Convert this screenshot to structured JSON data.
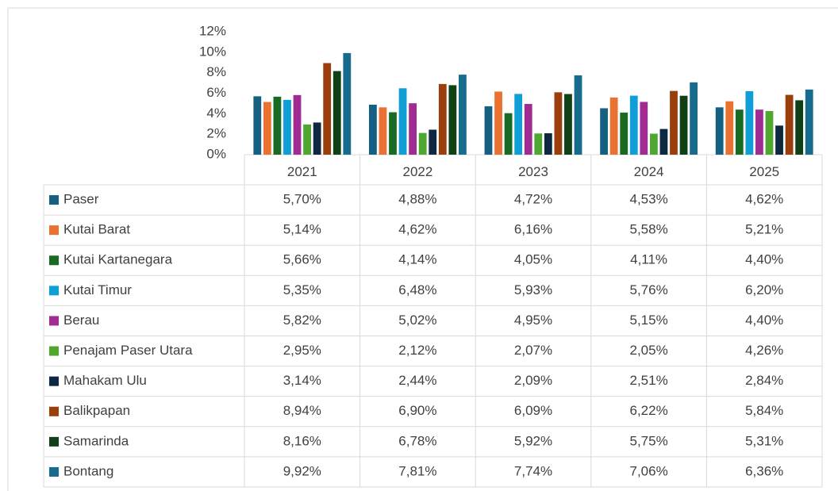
{
  "chart_data": {
    "type": "bar",
    "grid": false,
    "categories": [
      "2021",
      "2022",
      "2023",
      "2024",
      "2025"
    ],
    "ylim": [
      0,
      12
    ],
    "yticks": [
      {
        "value": 0,
        "label": "0%"
      },
      {
        "value": 2,
        "label": "2%"
      },
      {
        "value": 4,
        "label": "4%"
      },
      {
        "value": 6,
        "label": "6%"
      },
      {
        "value": 8,
        "label": "8%"
      },
      {
        "value": 10,
        "label": "10%"
      },
      {
        "value": 12,
        "label": "12%"
      }
    ],
    "series": [
      {
        "name": "Paser",
        "color": "#156082",
        "values": [
          5.7,
          4.88,
          4.72,
          4.53,
          4.62
        ],
        "value_labels": [
          "5,70%",
          "4,88%",
          "4,72%",
          "4,53%",
          "4,62%"
        ]
      },
      {
        "name": "Kutai Barat",
        "color": "#e97132",
        "values": [
          5.14,
          4.62,
          6.16,
          5.58,
          5.21
        ],
        "value_labels": [
          "5,14%",
          "4,62%",
          "6,16%",
          "5,58%",
          "5,21%"
        ]
      },
      {
        "name": "Kutai Kartanegara",
        "color": "#196b24",
        "values": [
          5.66,
          4.14,
          4.05,
          4.11,
          4.4
        ],
        "value_labels": [
          "5,66%",
          "4,14%",
          "4,05%",
          "4,11%",
          "4,40%"
        ]
      },
      {
        "name": "Kutai Timur",
        "color": "#0f9ed5",
        "values": [
          5.35,
          6.48,
          5.93,
          5.76,
          6.2
        ],
        "value_labels": [
          "5,35%",
          "6,48%",
          "5,93%",
          "5,76%",
          "6,20%"
        ]
      },
      {
        "name": "Berau",
        "color": "#a02b93",
        "values": [
          5.82,
          5.02,
          4.95,
          5.15,
          4.4
        ],
        "value_labels": [
          "5,82%",
          "5,02%",
          "4,95%",
          "5,15%",
          "4,40%"
        ]
      },
      {
        "name": "Penajam Paser Utara",
        "color": "#4ea72e",
        "values": [
          2.95,
          2.12,
          2.07,
          2.05,
          4.26
        ],
        "value_labels": [
          "2,95%",
          "2,12%",
          "2,07%",
          "2,05%",
          "4,26%"
        ]
      },
      {
        "name": "Mahakam Ulu",
        "color": "#0e2841",
        "values": [
          3.14,
          2.44,
          2.09,
          2.51,
          2.84
        ],
        "value_labels": [
          "3,14%",
          "2,44%",
          "2,09%",
          "2,51%",
          "2,84%"
        ]
      },
      {
        "name": "Balikpapan",
        "color": "#9a3f0c",
        "values": [
          8.94,
          6.9,
          6.09,
          6.22,
          5.84
        ],
        "value_labels": [
          "8,94%",
          "6,90%",
          "6,09%",
          "6,22%",
          "5,84%"
        ]
      },
      {
        "name": "Samarinda",
        "color": "#0f4016",
        "values": [
          8.16,
          6.78,
          5.92,
          5.75,
          5.31
        ],
        "value_labels": [
          "8,16%",
          "6,78%",
          "5,92%",
          "5,75%",
          "5,31%"
        ]
      },
      {
        "name": "Bontang",
        "color": "#176b8c",
        "values": [
          9.92,
          7.81,
          7.74,
          7.06,
          6.36
        ],
        "value_labels": [
          "9,92%",
          "7,81%",
          "7,74%",
          "7,06%",
          "6,36%"
        ]
      }
    ]
  }
}
